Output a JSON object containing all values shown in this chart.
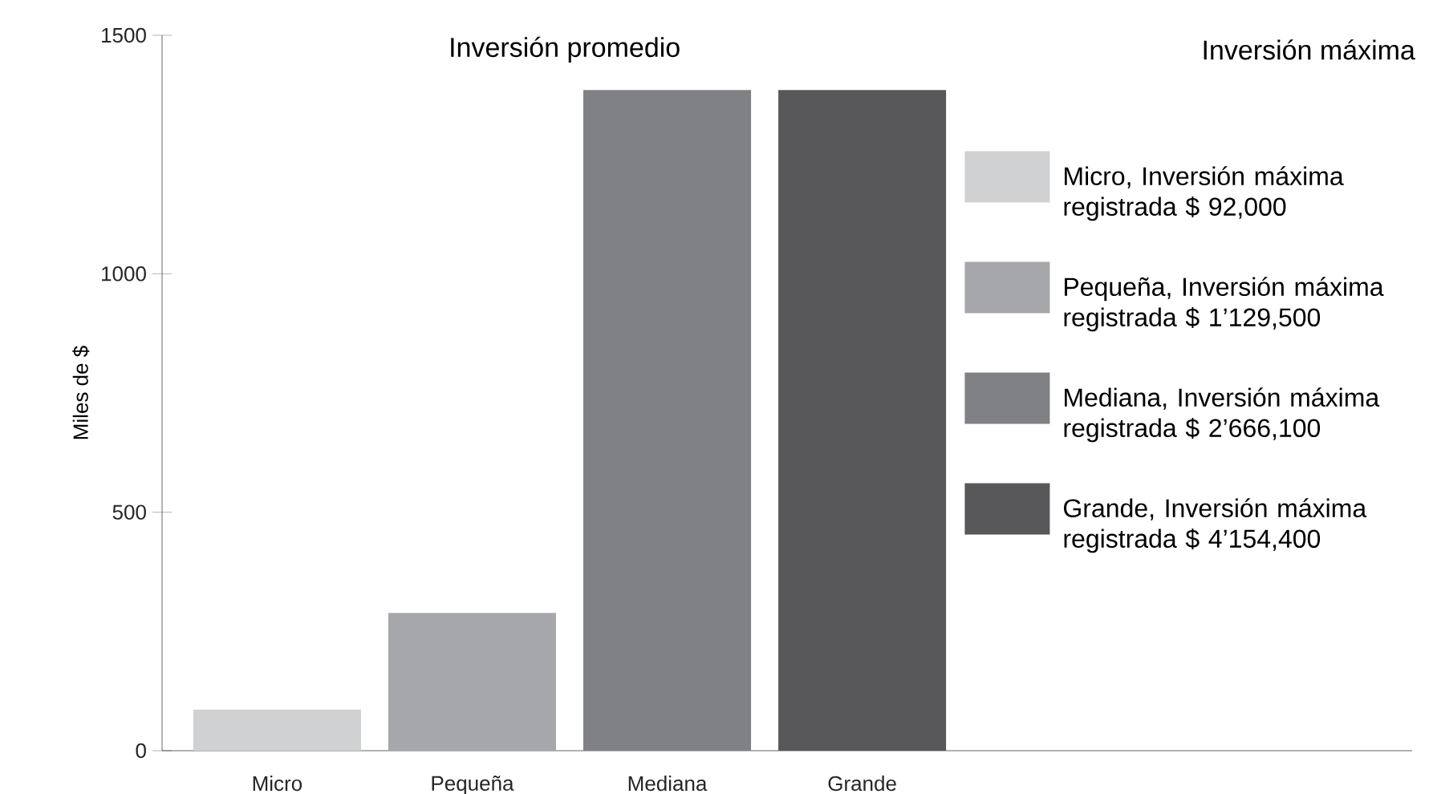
{
  "chart_data": {
    "type": "bar",
    "title": "Inversión promedio",
    "ylabel": "Miles de $",
    "legend_title": "Inversión máxima",
    "categories": [
      "Micro",
      "Pequeña",
      "Mediana",
      "Grande"
    ],
    "series": [
      {
        "name": "Micro, Inversión máxima registrada $ 92,000",
        "color": "#d0d1d3",
        "values": [
          86,
          null,
          null,
          null
        ]
      },
      {
        "name": "Pequeña, Inversión máxima registrada $ 1’129,500",
        "color": "#a6a7aa",
        "values": [
          null,
          289,
          null,
          null
        ]
      },
      {
        "name": "Mediana, Inversión máxima registrada $ 2’666,100",
        "color": "#808185",
        "values": [
          null,
          null,
          1385,
          null
        ]
      },
      {
        "name": "Grande, Inversión máxima registrada $ 4’154,400",
        "color": "#58585a",
        "values": [
          null,
          null,
          null,
          1385
        ]
      }
    ],
    "ylim": [
      0,
      1500
    ],
    "yticks": [
      0,
      500,
      1000,
      1500
    ],
    "grid": false,
    "legend": "right"
  }
}
